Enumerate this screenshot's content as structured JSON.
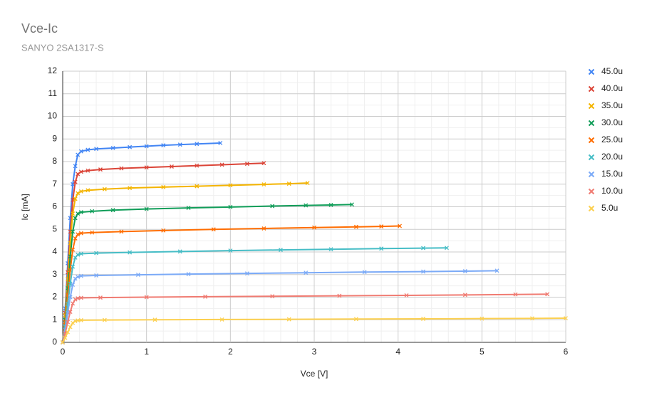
{
  "chart_data": {
    "type": "line",
    "title": "Vce-Ic",
    "subtitle": "SANYO 2SA1317-S",
    "x_label": "Vce [V]",
    "y_label": "Ic [mA]",
    "xlim": [
      0,
      6
    ],
    "xticks": [
      0,
      1,
      2,
      3,
      4,
      5,
      6
    ],
    "ylim": [
      0,
      12
    ],
    "yticks": [
      0,
      1,
      2,
      3,
      4,
      5,
      6,
      7,
      8,
      9,
      10,
      11,
      12
    ],
    "grid": true,
    "minor_grid": true,
    "legend": "right",
    "series": [
      {
        "name": "45.0u",
        "color": "#4285f4",
        "x": [
          0,
          0.03,
          0.06,
          0.09,
          0.12,
          0.15,
          0.18,
          0.22,
          0.3,
          0.4,
          0.6,
          0.8,
          1.0,
          1.2,
          1.4,
          1.6,
          1.88
        ],
        "values": [
          0,
          1.5,
          3.5,
          5.5,
          7.0,
          7.8,
          8.3,
          8.45,
          8.52,
          8.56,
          8.6,
          8.64,
          8.68,
          8.72,
          8.75,
          8.78,
          8.82
        ]
      },
      {
        "name": "40.0u",
        "color": "#db4437",
        "x": [
          0,
          0.03,
          0.06,
          0.09,
          0.12,
          0.15,
          0.18,
          0.22,
          0.3,
          0.45,
          0.7,
          1.0,
          1.3,
          1.6,
          1.9,
          2.2,
          2.4
        ],
        "values": [
          0,
          1.3,
          3.1,
          4.9,
          6.3,
          7.1,
          7.45,
          7.55,
          7.6,
          7.65,
          7.7,
          7.74,
          7.78,
          7.82,
          7.86,
          7.9,
          7.93
        ]
      },
      {
        "name": "35.0u",
        "color": "#f4b400",
        "x": [
          0,
          0.03,
          0.06,
          0.09,
          0.12,
          0.15,
          0.18,
          0.22,
          0.3,
          0.5,
          0.8,
          1.2,
          1.6,
          2.0,
          2.4,
          2.7,
          2.92
        ],
        "values": [
          0,
          1.2,
          2.8,
          4.4,
          5.7,
          6.35,
          6.6,
          6.68,
          6.73,
          6.78,
          6.83,
          6.87,
          6.91,
          6.95,
          6.99,
          7.02,
          7.05
        ]
      },
      {
        "name": "30.0u",
        "color": "#0f9d58",
        "x": [
          0,
          0.03,
          0.06,
          0.09,
          0.12,
          0.15,
          0.18,
          0.22,
          0.35,
          0.6,
          1.0,
          1.5,
          2.0,
          2.5,
          2.9,
          3.2,
          3.45
        ],
        "values": [
          0,
          1.0,
          2.4,
          3.8,
          4.9,
          5.5,
          5.7,
          5.76,
          5.8,
          5.85,
          5.9,
          5.95,
          5.99,
          6.03,
          6.06,
          6.08,
          6.1
        ]
      },
      {
        "name": "25.0u",
        "color": "#ff6d01",
        "x": [
          0,
          0.03,
          0.06,
          0.09,
          0.12,
          0.15,
          0.18,
          0.22,
          0.35,
          0.7,
          1.2,
          1.8,
          2.4,
          3.0,
          3.5,
          3.8,
          4.02
        ],
        "values": [
          0,
          0.9,
          2.1,
          3.2,
          4.1,
          4.6,
          4.78,
          4.83,
          4.86,
          4.9,
          4.95,
          5.0,
          5.04,
          5.08,
          5.11,
          5.13,
          5.15
        ]
      },
      {
        "name": "20.0u",
        "color": "#46bdc6",
        "x": [
          0,
          0.03,
          0.06,
          0.09,
          0.12,
          0.15,
          0.18,
          0.22,
          0.4,
          0.8,
          1.4,
          2.0,
          2.6,
          3.2,
          3.8,
          4.3,
          4.58
        ],
        "values": [
          0,
          0.7,
          1.7,
          2.6,
          3.35,
          3.75,
          3.88,
          3.92,
          3.95,
          3.98,
          4.02,
          4.06,
          4.09,
          4.12,
          4.15,
          4.17,
          4.18
        ]
      },
      {
        "name": "15.0u",
        "color": "#7baaf7",
        "x": [
          0,
          0.03,
          0.06,
          0.09,
          0.12,
          0.15,
          0.18,
          0.22,
          0.4,
          0.9,
          1.5,
          2.2,
          2.9,
          3.6,
          4.3,
          4.8,
          5.18
        ],
        "values": [
          0,
          0.55,
          1.3,
          2.0,
          2.55,
          2.82,
          2.9,
          2.94,
          2.96,
          2.99,
          3.02,
          3.05,
          3.08,
          3.11,
          3.13,
          3.15,
          3.17
        ]
      },
      {
        "name": "10.0u",
        "color": "#f07b72",
        "x": [
          0,
          0.03,
          0.06,
          0.09,
          0.12,
          0.15,
          0.18,
          0.22,
          0.45,
          1.0,
          1.7,
          2.5,
          3.3,
          4.1,
          4.8,
          5.4,
          5.78
        ],
        "values": [
          0,
          0.4,
          0.9,
          1.35,
          1.72,
          1.9,
          1.95,
          1.97,
          1.98,
          2.0,
          2.02,
          2.04,
          2.06,
          2.08,
          2.1,
          2.12,
          2.13
        ]
      },
      {
        "name": "5.0u",
        "color": "#fcd04f",
        "x": [
          0,
          0.03,
          0.06,
          0.09,
          0.12,
          0.15,
          0.18,
          0.22,
          0.5,
          1.1,
          1.9,
          2.7,
          3.5,
          4.3,
          5.0,
          5.6,
          6.0
        ],
        "values": [
          0,
          0.2,
          0.45,
          0.68,
          0.86,
          0.94,
          0.97,
          0.98,
          0.99,
          1.0,
          1.01,
          1.02,
          1.03,
          1.04,
          1.05,
          1.06,
          1.07
        ]
      }
    ]
  }
}
